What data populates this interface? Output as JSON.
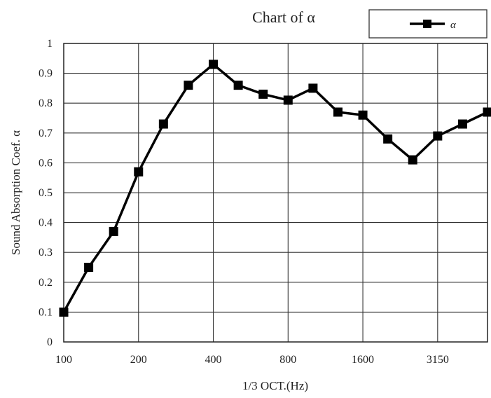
{
  "chart_data": {
    "type": "line",
    "title": "Chart of α",
    "xlabel": "1/3 OCT.(Hz)",
    "ylabel": "Sound Absorption Coef. α",
    "x_tick_labels": [
      "100",
      "200",
      "400",
      "800",
      "1600",
      "3150"
    ],
    "y_ticks": [
      "0",
      "0.1",
      "0.2",
      "0.3",
      "0.4",
      "0.5",
      "0.6",
      "0.7",
      "0.8",
      "0.9",
      "1"
    ],
    "ylim": [
      0,
      1
    ],
    "grid": true,
    "legend_position": "top-right",
    "series": [
      {
        "name": "α",
        "color": "#000000",
        "marker": "square",
        "x": [
          100,
          125,
          160,
          200,
          250,
          315,
          400,
          500,
          630,
          800,
          1000,
          1250,
          1600,
          2000,
          2500,
          3150,
          4000,
          5000
        ],
        "values": [
          0.1,
          0.25,
          0.37,
          0.57,
          0.73,
          0.86,
          0.93,
          0.86,
          0.83,
          0.81,
          0.85,
          0.77,
          0.76,
          0.68,
          0.61,
          0.69,
          0.73,
          0.77
        ]
      }
    ]
  }
}
